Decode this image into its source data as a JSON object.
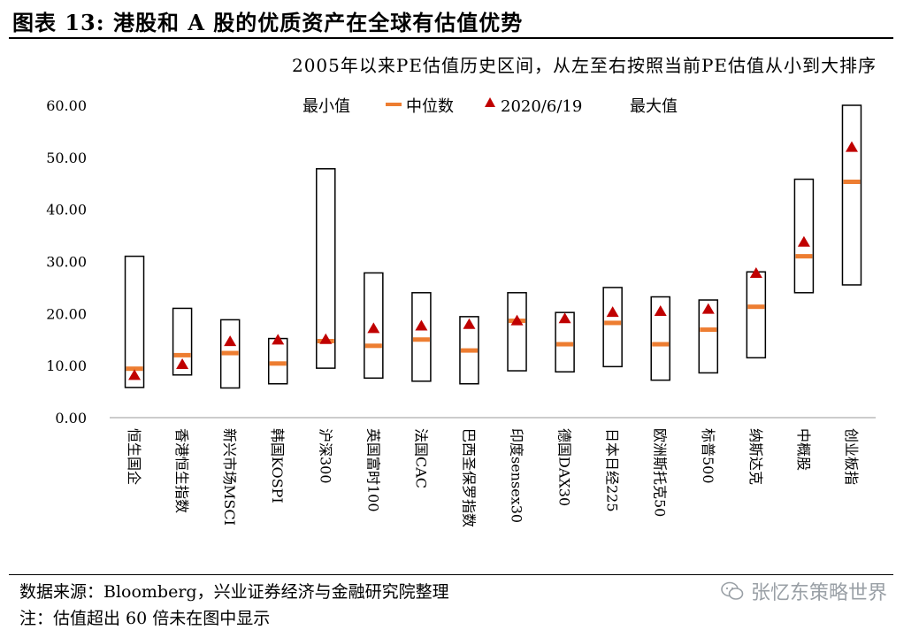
{
  "figure": {
    "title": "图表 13:  港股和 A 股的优质资产在全球有估值优势",
    "subtitle": "2005年以来PE估值历史区间，从左至右按照当前PE估值从小到大排序"
  },
  "legend": {
    "min_label": "最小值",
    "median_label": "中位数",
    "current_label": "2020/6/19",
    "max_label": "最大值"
  },
  "chart_data": {
    "type": "range-bar",
    "ylim": [
      0,
      60
    ],
    "yticks": [
      "0.00",
      "10.00",
      "20.00",
      "30.00",
      "40.00",
      "50.00",
      "60.00"
    ],
    "colors": {
      "median": "#ED7D31",
      "current": "#C00000",
      "box": "#000000"
    },
    "legend_placement": "top",
    "categories": [
      "恒生国企",
      "香港恒生指数",
      "新兴市场MSCI",
      "韩国KOSPI",
      "沪深300",
      "英国富时100",
      "法国CAC",
      "巴西圣保罗指数",
      "印度sensex30",
      "德国DAX30",
      "日本日经225",
      "欧洲斯托克50",
      "标普500",
      "纳斯达克",
      "中概股",
      "创业板指"
    ],
    "series": [
      {
        "name": "最小值",
        "values": [
          5.8,
          8.2,
          5.7,
          6.5,
          9.5,
          7.6,
          7.0,
          6.5,
          9.0,
          8.8,
          9.8,
          7.2,
          8.6,
          11.5,
          24.0,
          25.5
        ]
      },
      {
        "name": "中位数",
        "values": [
          9.4,
          12.0,
          12.4,
          10.4,
          14.7,
          13.8,
          15.0,
          12.9,
          18.6,
          14.1,
          18.2,
          14.1,
          16.9,
          21.3,
          31.0,
          45.3
        ]
      },
      {
        "name": "2020/6/19",
        "values": [
          8.1,
          10.2,
          14.6,
          14.9,
          15.0,
          17.1,
          17.6,
          17.9,
          18.6,
          19.0,
          20.2,
          20.4,
          20.8,
          27.7,
          33.7,
          51.9
        ]
      },
      {
        "name": "最大值",
        "values": [
          31.0,
          21.0,
          18.8,
          15.2,
          47.8,
          27.8,
          24.0,
          19.4,
          24.0,
          20.2,
          25.0,
          23.2,
          22.6,
          28.0,
          45.8,
          60.0
        ]
      }
    ]
  },
  "footer": {
    "source": "数据来源：Bloomberg，兴业证券经济与金融研究院整理",
    "note": "注：估值超出 60 倍未在图中显示",
    "watermark": "张忆东策略世界"
  }
}
